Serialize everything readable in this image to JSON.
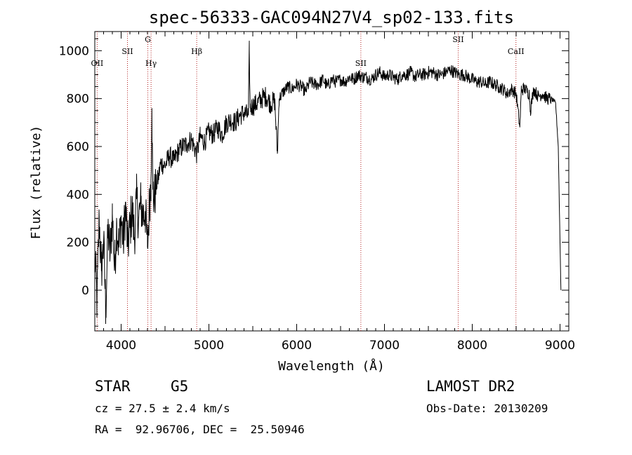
{
  "chart_data": {
    "type": "line",
    "title": "spec-56333-GAC094N27V4_sp02-133.fits",
    "xlabel": "Wavelength (Å)",
    "ylabel": "Flux (relative)",
    "xlim": [
      3700,
      9100
    ],
    "ylim": [
      -170,
      1080
    ],
    "x_ticks": [
      4000,
      5000,
      6000,
      7000,
      8000,
      9000
    ],
    "y_ticks": [
      0,
      200,
      400,
      600,
      800,
      1000
    ],
    "grid": false,
    "line_color": "#000000",
    "marker_color": "#b22222",
    "series": [
      {
        "x": [
          3700,
          3725,
          3750,
          3775,
          3800,
          3825,
          3850,
          3875,
          3900,
          3925,
          3950,
          3975,
          4000,
          4025,
          4050,
          4075,
          4100,
          4125,
          4150,
          4175,
          4200,
          4225,
          4250,
          4275,
          4300,
          4325,
          4340,
          4350,
          4360,
          4375,
          4400,
          4425,
          4450,
          4500,
          4550,
          4600,
          4650,
          4700,
          4750,
          4800,
          4861,
          4900,
          4950,
          5000,
          5050,
          5100,
          5150,
          5200,
          5250,
          5300,
          5350,
          5400,
          5450,
          5460,
          5470,
          5500,
          5550,
          5600,
          5650,
          5700,
          5750,
          5780,
          5800,
          5850,
          5900,
          5950,
          6000,
          6050,
          6100,
          6150,
          6200,
          6250,
          6300,
          6350,
          6400,
          6450,
          6500,
          6550,
          6600,
          6650,
          6700,
          6750,
          6800,
          6850,
          6900,
          6950,
          7000,
          7050,
          7100,
          7150,
          7200,
          7250,
          7300,
          7350,
          7400,
          7450,
          7500,
          7550,
          7600,
          7650,
          7700,
          7750,
          7800,
          7850,
          7900,
          7950,
          8000,
          8050,
          8100,
          8150,
          8200,
          8250,
          8300,
          8350,
          8400,
          8450,
          8500,
          8542,
          8560,
          8600,
          8650,
          8662,
          8700,
          8750,
          8800,
          8850,
          8900,
          8950,
          8980,
          9000,
          9010
        ],
        "y": [
          150,
          -50,
          300,
          80,
          200,
          -80,
          250,
          150,
          320,
          90,
          280,
          180,
          300,
          200,
          350,
          180,
          260,
          340,
          220,
          380,
          300,
          360,
          310,
          330,
          180,
          380,
          460,
          760,
          420,
          380,
          440,
          470,
          530,
          520,
          560,
          540,
          580,
          600,
          610,
          630,
          570,
          640,
          620,
          660,
          650,
          680,
          650,
          700,
          710,
          700,
          730,
          740,
          730,
          1000,
          760,
          770,
          780,
          800,
          810,
          780,
          790,
          570,
          800,
          830,
          850,
          840,
          860,
          850,
          830,
          870,
          860,
          860,
          880,
          850,
          880,
          870,
          880,
          870,
          890,
          880,
          900,
          890,
          890,
          880,
          900,
          910,
          890,
          900,
          890,
          880,
          900,
          900,
          910,
          890,
          900,
          900,
          910,
          910,
          900,
          900,
          910,
          920,
          910,
          900,
          900,
          890,
          880,
          870,
          870,
          860,
          870,
          860,
          850,
          840,
          820,
          840,
          820,
          680,
          840,
          840,
          820,
          750,
          840,
          810,
          820,
          800,
          800,
          780,
          600,
          200,
          0
        ]
      }
    ],
    "line_markers": [
      {
        "label": "OII",
        "x": 3727,
        "row": 3
      },
      {
        "label": "SII",
        "x": 4072,
        "row": 2
      },
      {
        "label": "G",
        "x": 4304,
        "row": 1
      },
      {
        "label": "Hγ",
        "x": 4341,
        "row": 3
      },
      {
        "label": "Hβ",
        "x": 4861,
        "row": 2
      },
      {
        "label": "SII",
        "x": 6731,
        "row": 3
      },
      {
        "label": "SII",
        "x": 7840,
        "row": 1
      },
      {
        "label": "CaII",
        "x": 8498,
        "row": 2
      }
    ]
  },
  "info": {
    "class_label": "STAR",
    "subclass": "G5",
    "survey": "LAMOST DR2",
    "cz": "cz = 27.5 ± 2.4 km/s",
    "obs_date": "Obs-Date: 20130209",
    "coords": "RA =  92.96706, DEC =  25.50946"
  }
}
